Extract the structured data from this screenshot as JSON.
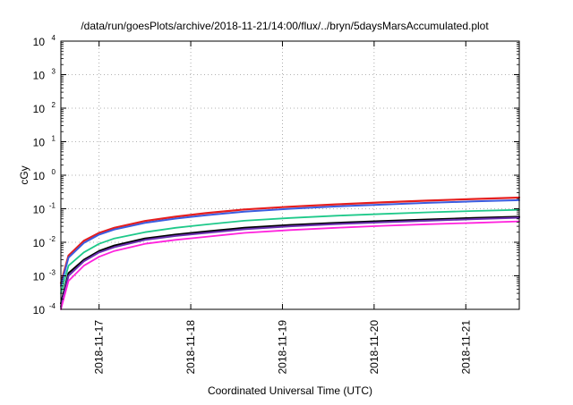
{
  "chart_data": {
    "type": "line",
    "title": "/data/run/goesPlots/archive/2018-11-21/14:00/flux/../bryn/5daysMarsAccumulated.plot",
    "xlabel": "Coordinated Universal Time (UTC)",
    "ylabel": "cGy",
    "xscale": "time",
    "yscale": "log",
    "xlim": [
      "2018-11-16 14:00",
      "2018-11-21 14:00"
    ],
    "ylim": [
      0.0001,
      10000
    ],
    "grid": true,
    "x_ticks": [
      "2018-11-17",
      "2018-11-18",
      "2018-11-19",
      "2018-11-20",
      "2018-11-21"
    ],
    "y_ticks": [
      {
        "value": 0.0001,
        "base": "10",
        "exp": "-4"
      },
      {
        "value": 0.001,
        "base": "10",
        "exp": "-3"
      },
      {
        "value": 0.01,
        "base": "10",
        "exp": "-2"
      },
      {
        "value": 0.1,
        "base": "10",
        "exp": "-1"
      },
      {
        "value": 1,
        "base": "10",
        "exp": "0"
      },
      {
        "value": 10,
        "base": "10",
        "exp": "1"
      },
      {
        "value": 100,
        "base": "10",
        "exp": "2"
      },
      {
        "value": 1000,
        "base": "10",
        "exp": "3"
      },
      {
        "value": 10000,
        "base": "10",
        "exp": "4"
      }
    ],
    "x": [
      "2018-11-16 14:00",
      "2018-11-16 16:00",
      "2018-11-16 20:00",
      "2018-11-17 00:00",
      "2018-11-17 04:00",
      "2018-11-17 12:00",
      "2018-11-17 20:00",
      "2018-11-18 04:00",
      "2018-11-18 14:00",
      "2018-11-19 02:00",
      "2018-11-19 14:00",
      "2018-11-20 02:00",
      "2018-11-20 14:00",
      "2018-11-21 02:00",
      "2018-11-21 14:00"
    ],
    "series": [
      {
        "color": "#e51e1e",
        "width": 2.2,
        "values": [
          0.0006,
          0.004,
          0.011,
          0.019,
          0.027,
          0.043,
          0.058,
          0.074,
          0.095,
          0.115,
          0.135,
          0.155,
          0.175,
          0.195,
          0.215
        ]
      },
      {
        "color": "#3b5de0",
        "width": 2.0,
        "values": [
          0.0005,
          0.0035,
          0.0095,
          0.017,
          0.024,
          0.038,
          0.051,
          0.064,
          0.082,
          0.1,
          0.117,
          0.133,
          0.15,
          0.165,
          0.18
        ]
      },
      {
        "color": "#1ec98a",
        "width": 1.8,
        "values": [
          0.0003,
          0.002,
          0.005,
          0.009,
          0.013,
          0.02,
          0.027,
          0.034,
          0.044,
          0.053,
          0.062,
          0.07,
          0.078,
          0.086,
          0.093
        ]
      },
      {
        "color": "#000000",
        "width": 2.0,
        "values": [
          0.00015,
          0.0012,
          0.003,
          0.0055,
          0.008,
          0.013,
          0.017,
          0.021,
          0.027,
          0.033,
          0.038,
          0.043,
          0.048,
          0.053,
          0.058
        ]
      },
      {
        "color": "#6a2fb0",
        "width": 2.0,
        "values": [
          0.00012,
          0.001,
          0.0027,
          0.005,
          0.0072,
          0.0118,
          0.0155,
          0.019,
          0.0245,
          0.03,
          0.035,
          0.0395,
          0.044,
          0.049,
          0.054
        ]
      },
      {
        "color": "#ff22dd",
        "width": 1.8,
        "values": [
          0.0001,
          0.0007,
          0.002,
          0.0037,
          0.0055,
          0.009,
          0.0118,
          0.0145,
          0.019,
          0.0232,
          0.027,
          0.031,
          0.0345,
          0.038,
          0.042
        ]
      }
    ]
  }
}
